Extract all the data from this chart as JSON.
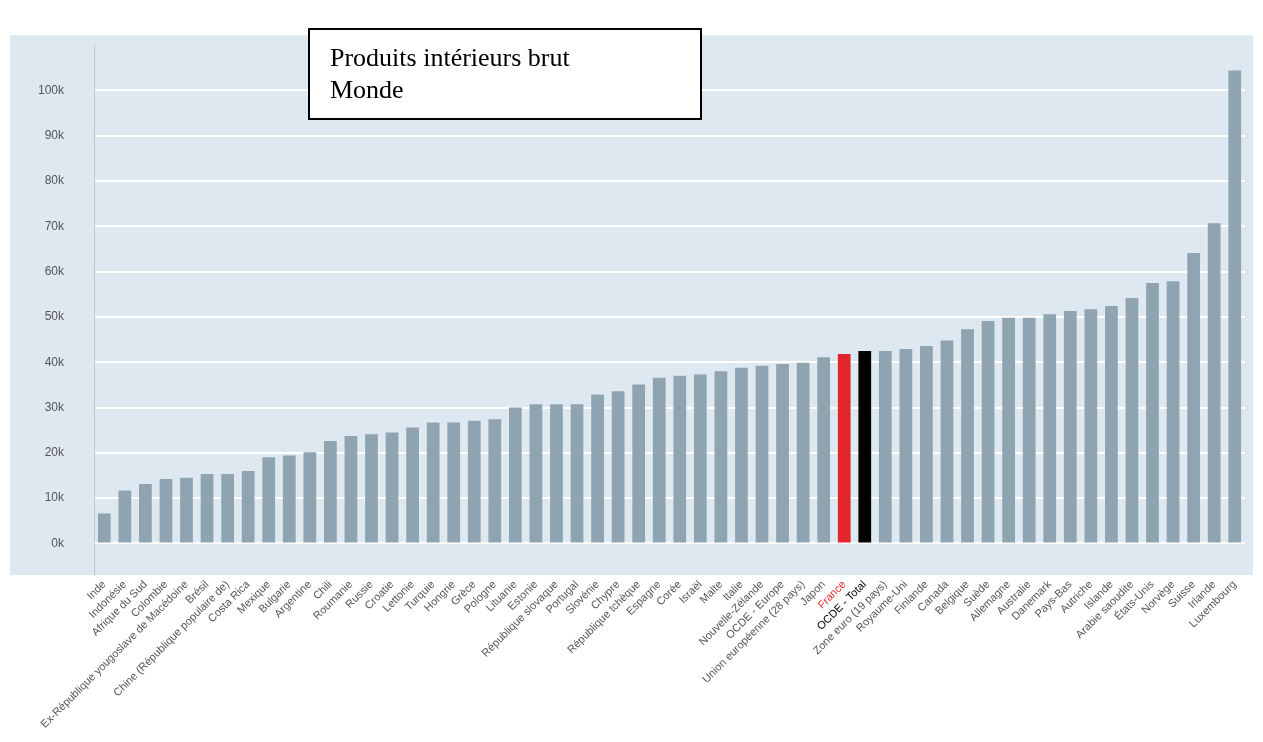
{
  "chart_data": {
    "type": "bar",
    "title": "Produits intérieurs brut",
    "subtitle": "Monde",
    "categories": [
      "Inde",
      "Indonésie",
      "Afrique du Sud",
      "Colombie",
      "Ex-République yougoslave de Macédoine",
      "Brésil",
      "Chine (République populaire de)",
      "Costa Rica",
      "Mexique",
      "Bulgarie",
      "Argentine",
      "Chili",
      "Roumanie",
      "Russie",
      "Croatie",
      "Lettonie",
      "Turquie",
      "Hongrie",
      "Grèce",
      "Pologne",
      "Lituanie",
      "Estonie",
      "République slovaque",
      "Portugal",
      "Slovénie",
      "Chypre",
      "République tchèque",
      "Espagne",
      "Corée",
      "Israël",
      "Malte",
      "Italie",
      "Nouvelle-Zélande",
      "OCDE - Europe",
      "Union européenne (28 pays)",
      "Japon",
      "France",
      "OCDE - Total",
      "Zone euro (19 pays)",
      "Royaume-Uni",
      "Finlande",
      "Canada",
      "Belgique",
      "Suède",
      "Allemagne",
      "Australie",
      "Danemark",
      "Pays-Bas",
      "Autriche",
      "Islande",
      "Arabie saoudite",
      "États-Unis",
      "Norvège",
      "Suisse",
      "Irlande",
      "Luxembourg"
    ],
    "values": [
      6600,
      11700,
      13100,
      14200,
      14500,
      15300,
      15300,
      16000,
      19000,
      19400,
      20100,
      22600,
      23700,
      24100,
      24500,
      25600,
      26700,
      26700,
      27100,
      27400,
      30000,
      30700,
      30700,
      30700,
      32900,
      33600,
      35100,
      36600,
      37000,
      37300,
      38000,
      38800,
      39200,
      39600,
      39900,
      41100,
      41800,
      42500,
      42500,
      42900,
      43600,
      44800,
      47300,
      49100,
      49800,
      49800,
      50600,
      51300,
      51700,
      52400,
      54200,
      57500,
      57900,
      64100,
      70700,
      104400
    ],
    "colors": [
      "#8fa4b0",
      "#8fa4b0",
      "#8fa4b0",
      "#8fa4b0",
      "#8fa4b0",
      "#8fa4b0",
      "#8fa4b0",
      "#8fa4b0",
      "#8fa4b0",
      "#8fa4b0",
      "#8fa4b0",
      "#8fa4b0",
      "#8fa4b0",
      "#8fa4b0",
      "#8fa4b0",
      "#8fa4b0",
      "#8fa4b0",
      "#8fa4b0",
      "#8fa4b0",
      "#8fa4b0",
      "#8fa4b0",
      "#8fa4b0",
      "#8fa4b0",
      "#8fa4b0",
      "#8fa4b0",
      "#8fa4b0",
      "#8fa4b0",
      "#8fa4b0",
      "#8fa4b0",
      "#8fa4b0",
      "#8fa4b0",
      "#8fa4b0",
      "#8fa4b0",
      "#8fa4b0",
      "#8fa4b0",
      "#8fa4b0",
      "#e3262c",
      "#000000",
      "#8fa4b0",
      "#8fa4b0",
      "#8fa4b0",
      "#8fa4b0",
      "#8fa4b0",
      "#8fa4b0",
      "#8fa4b0",
      "#8fa4b0",
      "#8fa4b0",
      "#8fa4b0",
      "#8fa4b0",
      "#8fa4b0",
      "#8fa4b0",
      "#8fa4b0",
      "#8fa4b0",
      "#8fa4b0",
      "#8fa4b0",
      "#8fa4b0"
    ],
    "ylim": [
      -7000,
      110000
    ],
    "yticks": [
      {
        "value": 0,
        "label": "0k"
      },
      {
        "value": 10000,
        "label": "10k"
      },
      {
        "value": 20000,
        "label": "20k"
      },
      {
        "value": 30000,
        "label": "30k"
      },
      {
        "value": 40000,
        "label": "40k"
      },
      {
        "value": 50000,
        "label": "50k"
      },
      {
        "value": 60000,
        "label": "60k"
      },
      {
        "value": 70000,
        "label": "70k"
      },
      {
        "value": 80000,
        "label": "80k"
      },
      {
        "value": 90000,
        "label": "90k"
      },
      {
        "value": 100000,
        "label": "100k"
      }
    ],
    "grid": "y",
    "legend": false
  }
}
